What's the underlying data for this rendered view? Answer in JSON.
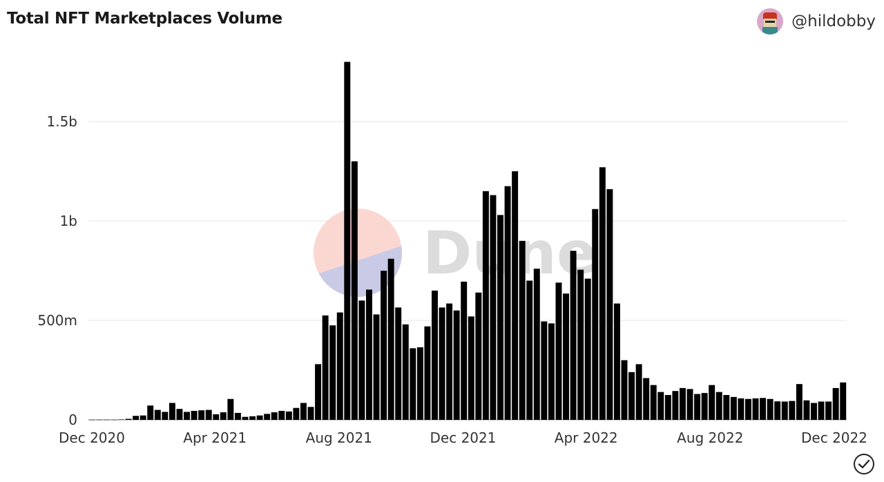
{
  "header": {
    "title": "Total NFT Marketplaces Volume",
    "author_handle": "@hildobby"
  },
  "watermark": {
    "text": "Dune",
    "icon": "dune-logo-icon"
  },
  "footer": {
    "status_icon": "check-circle-icon"
  },
  "chart_data": {
    "type": "bar",
    "title": "Total NFT Marketplaces Volume",
    "xlabel": "",
    "ylabel": "",
    "bar_color": "#000000",
    "grid": true,
    "x_start": "2020-12-01",
    "x_end": "2022-12-31",
    "x_tick_labels": [
      "Dec 2020",
      "Apr 2021",
      "Aug 2021",
      "Dec 2021",
      "Apr 2022",
      "Aug 2022",
      "Dec 2022"
    ],
    "y_ticks": [
      0,
      500000000,
      1000000000,
      1500000000
    ],
    "y_tick_labels": [
      "0",
      "500m",
      "1b",
      "1.5b"
    ],
    "ylim": [
      0,
      1800000000
    ],
    "values": [
      1000000,
      1000000,
      1000000,
      1000000,
      2000000,
      5000000,
      20000000,
      22000000,
      72000000,
      50000000,
      40000000,
      85000000,
      55000000,
      40000000,
      45000000,
      48000000,
      50000000,
      28000000,
      38000000,
      105000000,
      35000000,
      15000000,
      18000000,
      22000000,
      30000000,
      38000000,
      45000000,
      42000000,
      60000000,
      85000000,
      65000000,
      280000000,
      525000000,
      475000000,
      540000000,
      1800000000,
      1300000000,
      600000000,
      655000000,
      530000000,
      750000000,
      810000000,
      565000000,
      480000000,
      360000000,
      365000000,
      470000000,
      650000000,
      565000000,
      585000000,
      550000000,
      695000000,
      520000000,
      640000000,
      1150000000,
      1130000000,
      1030000000,
      1175000000,
      1250000000,
      900000000,
      700000000,
      760000000,
      495000000,
      485000000,
      690000000,
      635000000,
      850000000,
      755000000,
      710000000,
      1060000000,
      1270000000,
      1160000000,
      585000000,
      300000000,
      240000000,
      280000000,
      210000000,
      175000000,
      140000000,
      125000000,
      145000000,
      160000000,
      155000000,
      130000000,
      135000000,
      175000000,
      140000000,
      125000000,
      115000000,
      108000000,
      105000000,
      108000000,
      110000000,
      105000000,
      93000000,
      92000000,
      95000000,
      180000000,
      98000000,
      85000000,
      92000000,
      92000000,
      160000000,
      188000000
    ]
  }
}
